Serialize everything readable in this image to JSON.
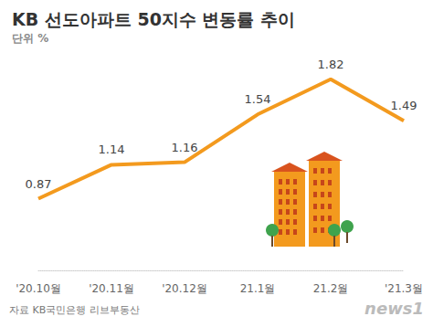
{
  "chart_data": {
    "type": "line",
    "title": "KB 선도아파트 50지수 변동률 추이",
    "subtitle": "단위 %",
    "categories": [
      "'20.10월",
      "'20.11월",
      "'20.12월",
      "21.1월",
      "21.2월",
      "'21.3월"
    ],
    "values": [
      0.87,
      1.14,
      1.16,
      1.54,
      1.82,
      1.49
    ],
    "color": "#f39a1e",
    "ylim": [
      0.3,
      2.0
    ],
    "grid": false,
    "data_labels": true,
    "tick_labels": "x",
    "source": "자료 KB국민은행 리브부동산",
    "credit": "news1"
  }
}
